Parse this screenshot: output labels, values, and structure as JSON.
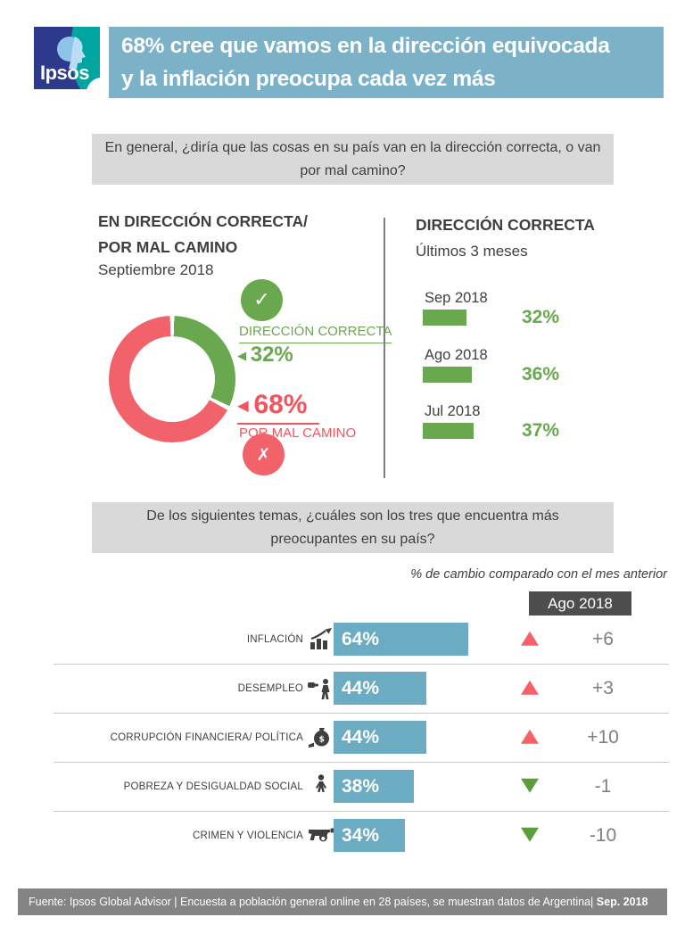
{
  "header": {
    "logo_text": "Ipsos",
    "title_line1": "68% cree que vamos en la dirección equivocada",
    "title_line2": "y la inflación preocupa cada vez más"
  },
  "questions": {
    "q1": "En general, ¿diría que las cosas en su país van en la dirección correcta, o van por mal camino?",
    "q2": "De los siguientes temas, ¿cuáles son los tres que encuentra más preocupantes en su país?"
  },
  "direction": {
    "title_line1": "EN DIRECCIÓN CORRECTA/",
    "title_line2": "POR MAL CAMINO",
    "subtitle": "Septiembre 2018",
    "correct_label": "DIRECCIÓN CORRECTA",
    "correct_value": "32%",
    "wrong_value": "68%",
    "wrong_label": "POR MAL CAMINO",
    "check_icon": "check-icon",
    "cross_icon": "cross-icon",
    "pointer_icon": "left-pointer-icon"
  },
  "trend": {
    "title": "DIRECCIÓN CORRECTA",
    "subtitle": "Últimos 3 meses",
    "bars": [
      {
        "label": "Sep 2018",
        "value": "32%"
      },
      {
        "label": "Ago 2018",
        "value": "36%"
      },
      {
        "label": "Jul 2018",
        "value": "37%"
      }
    ]
  },
  "concerns": {
    "note": "% de cambio comparado con el mes anterior",
    "column_header": "Ago 2018",
    "rows": [
      {
        "label": "INFLACIÓN",
        "icon": "inflation-chart-icon",
        "value": "64%",
        "change": "+6",
        "direction": "up"
      },
      {
        "label": "DESEMPLEO",
        "icon": "unemployment-icon",
        "value": "44%",
        "change": "+3",
        "direction": "up"
      },
      {
        "label": "CORRUPCIÓN FINANCIERA/ POLÍTICA",
        "icon": "money-bag-icon",
        "value": "44%",
        "change": "+10",
        "direction": "up"
      },
      {
        "label": "POBREZA Y DESIGUALDAD SOCIAL",
        "icon": "person-icon",
        "value": "38%",
        "change": "-1",
        "direction": "down"
      },
      {
        "label": "CRIMEN Y VIOLENCIA",
        "icon": "gun-icon",
        "value": "34%",
        "change": "-10",
        "direction": "down"
      }
    ]
  },
  "footer": {
    "text": "Fuente: Ipsos Global Advisor | Encuesta a población general online en 28 países, se muestran datos de Argentina|",
    "date": "Sep. 2018"
  },
  "colors": {
    "banner_blue": "#7bb2c8",
    "bar_blue": "#6cacc3",
    "green": "#6aa84f",
    "red": "#f2626a",
    "triangle_up_red": "#f4616b",
    "triangle_down_green": "#5d9e3c",
    "dark_text": "#3f3f3f",
    "change_gray": "#7f7f7f",
    "question_box_gray": "#d9d9d9",
    "column_header_dark": "#4d4d4d",
    "footer_gray": "#848484",
    "logo_blue": "#2d3a8c",
    "logo_teal": "#00a5a0"
  },
  "chart_data": [
    {
      "type": "pie",
      "title": "EN DIRECCIÓN CORRECTA/ POR MAL CAMINO — Septiembre 2018",
      "labels": [
        "DIRECCIÓN CORRECTA",
        "POR MAL CAMINO"
      ],
      "values": [
        32,
        68
      ],
      "colors": [
        "#6aa84f",
        "#f2626a"
      ],
      "donut": true
    },
    {
      "type": "bar",
      "title": "DIRECCIÓN CORRECTA — Últimos 3 meses",
      "orientation": "horizontal",
      "categories": [
        "Sep 2018",
        "Ago 2018",
        "Jul 2018"
      ],
      "values": [
        32,
        36,
        37
      ],
      "unit": "%",
      "color": "#6aa84f"
    },
    {
      "type": "bar",
      "title": "Temas más preocupantes en su país (tres más mencionados)",
      "orientation": "horizontal",
      "categories": [
        "INFLACIÓN",
        "DESEMPLEO",
        "CORRUPCIÓN FINANCIERA/ POLÍTICA",
        "POBREZA Y DESIGUALDAD SOCIAL",
        "CRIMEN Y VIOLENCIA"
      ],
      "values": [
        64,
        44,
        44,
        38,
        34
      ],
      "unit": "%",
      "color": "#6cacc3",
      "change_column_header": "Ago 2018",
      "change_vs_previous_month": [
        6,
        3,
        10,
        -1,
        -10
      ]
    }
  ]
}
